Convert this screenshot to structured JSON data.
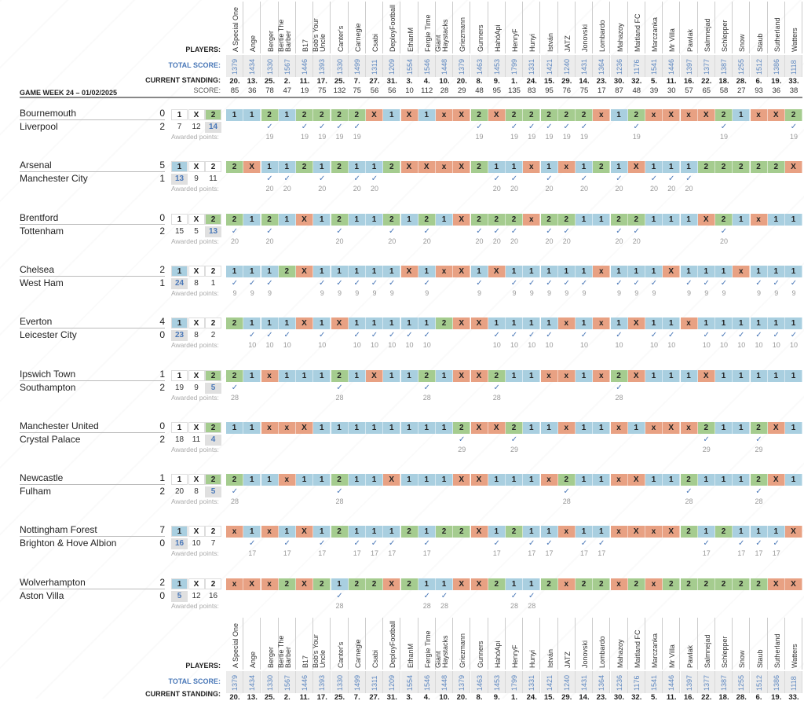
{
  "header": {
    "players_label": "PLAYERS:",
    "total_score_label": "TOTAL SCORE:",
    "standing_label": "CURRENT STANDING:",
    "score_label": "SCORE:",
    "game_week": "GAME WEEK 24 – 01/02/2025"
  },
  "awarded_label": "Awarded points:",
  "check_icon": "✓",
  "colors": {
    "pick_1": "#a9cfe0",
    "pick_x": "#e8a183",
    "pick_2": "#a5cc8f",
    "total_score": "#4a78b8"
  },
  "players": [
    {
      "name": "A Special One",
      "total": "1379",
      "standing": "20.",
      "score": "85"
    },
    {
      "name": "Ange",
      "total": "1434",
      "standing": "13.",
      "score": "36"
    },
    {
      "name": "Berger",
      "total": "1330",
      "standing": "25.",
      "score": "78"
    },
    {
      "name": "Bertie The Barber",
      "total": "1567",
      "standing": "2.",
      "score": "47"
    },
    {
      "name": "B17",
      "total": "1446",
      "standing": "11.",
      "score": "19"
    },
    {
      "name": "Bob's Your Uncle",
      "total": "1393",
      "standing": "17.",
      "score": "75"
    },
    {
      "name": "Canter's",
      "total": "1330",
      "standing": "25.",
      "score": "132"
    },
    {
      "name": "Carnegie",
      "total": "1499",
      "standing": "7.",
      "score": "75"
    },
    {
      "name": "Csabi",
      "total": "1311",
      "standing": "27.",
      "score": "56"
    },
    {
      "name": "DeployFootball",
      "total": "1209",
      "standing": "31.",
      "score": "56"
    },
    {
      "name": "EthanM",
      "total": "1554",
      "standing": "3.",
      "score": "10"
    },
    {
      "name": "Fergie Time",
      "total": "1546",
      "standing": "4.",
      "score": "112"
    },
    {
      "name": "Giant Haystacks",
      "total": "1448",
      "standing": "10.",
      "score": "28"
    },
    {
      "name": "Griezmann",
      "total": "1379",
      "standing": "20.",
      "score": "29"
    },
    {
      "name": "Gunners",
      "total": "1463",
      "standing": "8.",
      "score": "48"
    },
    {
      "name": "HahóApi",
      "total": "1453",
      "standing": "9.",
      "score": "95"
    },
    {
      "name": "HenryF",
      "total": "1799",
      "standing": "1.",
      "score": "135"
    },
    {
      "name": "Hunyi",
      "total": "1331",
      "standing": "24.",
      "score": "83"
    },
    {
      "name": "István",
      "total": "1421",
      "standing": "15.",
      "score": "95"
    },
    {
      "name": "JATZ",
      "total": "1240",
      "standing": "29.",
      "score": "76"
    },
    {
      "name": "Jonovski",
      "total": "1431",
      "standing": "14.",
      "score": "75"
    },
    {
      "name": "Lombardo",
      "total": "1364",
      "standing": "23.",
      "score": "17"
    },
    {
      "name": "Mahazoy",
      "total": "1236",
      "standing": "30.",
      "score": "87"
    },
    {
      "name": "Maitland FC",
      "total": "1176",
      "standing": "32.",
      "score": "48"
    },
    {
      "name": "Marczanka",
      "total": "1541",
      "standing": "5.",
      "score": "39"
    },
    {
      "name": "Mr Villa",
      "total": "1446",
      "standing": "11.",
      "score": "30"
    },
    {
      "name": "Pawlak",
      "total": "1397",
      "standing": "16.",
      "score": "57"
    },
    {
      "name": "Salmnejad",
      "total": "1377",
      "standing": "22.",
      "score": "65"
    },
    {
      "name": "Schlepper",
      "total": "1387",
      "standing": "18.",
      "score": "58"
    },
    {
      "name": "Snow",
      "total": "1255",
      "standing": "28.",
      "score": "27"
    },
    {
      "name": "Staub",
      "total": "1512",
      "standing": "6.",
      "score": "93"
    },
    {
      "name": "Sutherland",
      "total": "1386",
      "standing": "19.",
      "score": "36"
    },
    {
      "name": "Watters",
      "total": "1118",
      "standing": "33.",
      "score": "38"
    }
  ],
  "matches": [
    {
      "home": "Bournemouth",
      "away": "Liverpool",
      "home_goals": "0",
      "away_goals": "2",
      "result": "2",
      "counts": {
        "1": "7",
        "X": "12",
        "2": "14"
      },
      "points": "19",
      "picks": [
        "1",
        "1",
        "2",
        "1",
        "2",
        "2",
        "2",
        "2",
        "X",
        "1",
        "X",
        "1",
        "x",
        "X",
        "2",
        "X",
        "2",
        "2",
        "2",
        "2",
        "2",
        "x",
        "1",
        "2",
        "x",
        "X",
        "x",
        "X",
        "2",
        "1",
        "x",
        "X",
        "2"
      ]
    },
    {
      "home": "Arsenal",
      "away": "Manchester City",
      "home_goals": "5",
      "away_goals": "1",
      "result": "1",
      "counts": {
        "1": "13",
        "X": "9",
        "2": "11"
      },
      "points": "20",
      "picks": [
        "2",
        "X",
        "1",
        "1",
        "2",
        "1",
        "2",
        "1",
        "1",
        "2",
        "X",
        "X",
        "x",
        "X",
        "2",
        "1",
        "1",
        "x",
        "1",
        "x",
        "1",
        "2",
        "1",
        "X",
        "1",
        "1",
        "1",
        "2",
        "2",
        "2",
        "2",
        "2",
        "X"
      ]
    },
    {
      "home": "Brentford",
      "away": "Tottenham",
      "home_goals": "0",
      "away_goals": "2",
      "result": "2",
      "counts": {
        "1": "15",
        "X": "5",
        "2": "13"
      },
      "points": "20",
      "picks": [
        "2",
        "1",
        "2",
        "1",
        "X",
        "1",
        "2",
        "1",
        "1",
        "2",
        "1",
        "2",
        "1",
        "X",
        "2",
        "2",
        "2",
        "x",
        "2",
        "2",
        "1",
        "1",
        "2",
        "2",
        "1",
        "1",
        "1",
        "X",
        "2",
        "1",
        "x",
        "1",
        "1"
      ]
    },
    {
      "home": "Chelsea",
      "away": "West Ham",
      "home_goals": "2",
      "away_goals": "1",
      "result": "1",
      "counts": {
        "1": "24",
        "X": "8",
        "2": "1"
      },
      "points": "9",
      "picks": [
        "1",
        "1",
        "1",
        "2",
        "X",
        "1",
        "1",
        "1",
        "1",
        "1",
        "X",
        "1",
        "x",
        "X",
        "1",
        "X",
        "1",
        "1",
        "1",
        "1",
        "1",
        "x",
        "1",
        "1",
        "1",
        "X",
        "1",
        "1",
        "1",
        "x",
        "1",
        "1",
        "1"
      ]
    },
    {
      "home": "Everton",
      "away": "Leicester City",
      "home_goals": "4",
      "away_goals": "0",
      "result": "1",
      "counts": {
        "1": "23",
        "X": "8",
        "2": "2"
      },
      "points": "10",
      "picks": [
        "2",
        "1",
        "1",
        "1",
        "X",
        "1",
        "X",
        "1",
        "1",
        "1",
        "1",
        "1",
        "2",
        "X",
        "X",
        "1",
        "1",
        "1",
        "1",
        "x",
        "1",
        "x",
        "1",
        "X",
        "1",
        "1",
        "x",
        "1",
        "1",
        "1",
        "1",
        "1",
        "1"
      ]
    },
    {
      "home": "Ipswich Town",
      "away": "Southampton",
      "home_goals": "1",
      "away_goals": "2",
      "result": "2",
      "counts": {
        "1": "19",
        "X": "9",
        "2": "5"
      },
      "points": "28",
      "picks": [
        "2",
        "1",
        "x",
        "1",
        "1",
        "1",
        "2",
        "1",
        "X",
        "1",
        "1",
        "2",
        "1",
        "X",
        "X",
        "2",
        "1",
        "1",
        "x",
        "x",
        "1",
        "x",
        "2",
        "X",
        "1",
        "1",
        "1",
        "X",
        "1",
        "1",
        "1",
        "1",
        "1"
      ]
    },
    {
      "home": "Manchester United",
      "away": "Crystal Palace",
      "home_goals": "0",
      "away_goals": "2",
      "result": "2",
      "counts": {
        "1": "18",
        "X": "11",
        "2": "4"
      },
      "points": "29",
      "picks": [
        "1",
        "1",
        "x",
        "x",
        "X",
        "1",
        "1",
        "1",
        "1",
        "1",
        "1",
        "1",
        "1",
        "2",
        "X",
        "X",
        "2",
        "1",
        "1",
        "x",
        "1",
        "1",
        "x",
        "1",
        "x",
        "X",
        "x",
        "2",
        "1",
        "1",
        "2",
        "X",
        "1"
      ]
    },
    {
      "home": "Newcastle",
      "away": "Fulham",
      "home_goals": "1",
      "away_goals": "2",
      "result": "2",
      "counts": {
        "1": "20",
        "X": "8",
        "2": "5"
      },
      "points": "28",
      "picks": [
        "2",
        "1",
        "1",
        "x",
        "1",
        "1",
        "2",
        "1",
        "1",
        "X",
        "1",
        "1",
        "1",
        "X",
        "X",
        "1",
        "1",
        "1",
        "x",
        "2",
        "1",
        "1",
        "x",
        "X",
        "1",
        "1",
        "2",
        "1",
        "1",
        "1",
        "2",
        "X",
        "1"
      ]
    },
    {
      "home": "Nottingham Forest",
      "away": "Brighton & Hove Albion",
      "home_goals": "7",
      "away_goals": "0",
      "result": "1",
      "counts": {
        "1": "16",
        "X": "10",
        "2": "7"
      },
      "points": "17",
      "picks": [
        "x",
        "1",
        "x",
        "1",
        "X",
        "1",
        "2",
        "1",
        "1",
        "1",
        "2",
        "1",
        "2",
        "2",
        "X",
        "1",
        "2",
        "1",
        "1",
        "x",
        "1",
        "1",
        "x",
        "X",
        "x",
        "X",
        "2",
        "1",
        "2",
        "1",
        "1",
        "1",
        "X"
      ]
    },
    {
      "home": "Wolverhampton",
      "away": "Aston Villa",
      "home_goals": "2",
      "away_goals": "0",
      "result": "1",
      "counts": {
        "1": "5",
        "X": "12",
        "2": "16"
      },
      "points": "28",
      "picks": [
        "x",
        "X",
        "x",
        "2",
        "X",
        "2",
        "1",
        "2",
        "2",
        "X",
        "2",
        "1",
        "1",
        "X",
        "X",
        "2",
        "1",
        "1",
        "2",
        "x",
        "2",
        "2",
        "x",
        "2",
        "x",
        "2",
        "2",
        "2",
        "2",
        "2",
        "2",
        "X",
        "X"
      ]
    }
  ]
}
